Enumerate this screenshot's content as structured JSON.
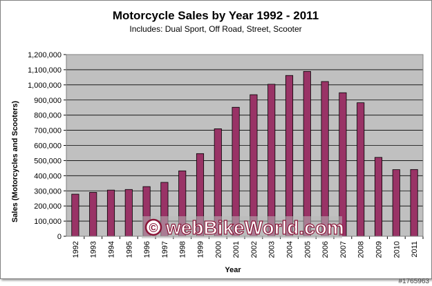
{
  "chart_data": {
    "type": "bar",
    "title": "Motorcycle Sales by Year 1992 - 2011",
    "subtitle": "Includes: Dual Sport, Off Road, Street, Scooter",
    "xlabel": "Year",
    "ylabel": "Sales (Motorcycles and Scooters)",
    "categories": [
      "1992",
      "1993",
      "1994",
      "1995",
      "1996",
      "1997",
      "1998",
      "1999",
      "2000",
      "2001",
      "2002",
      "2003",
      "2004",
      "2005",
      "2006",
      "2007",
      "2008",
      "2009",
      "2010",
      "2011"
    ],
    "values": [
      278000,
      290000,
      305000,
      309000,
      328000,
      356000,
      432000,
      546000,
      710000,
      852000,
      935000,
      1004000,
      1062000,
      1089000,
      1022000,
      948000,
      882000,
      521000,
      440000,
      441000
    ],
    "ylim": [
      0,
      1200000
    ],
    "ytick_step": 100000,
    "grid": true,
    "legend": "none",
    "colors": {
      "bar": "#993366",
      "plot_bg": "#c0c0c0",
      "grid": "#000000"
    }
  },
  "watermark": {
    "symbol": "©",
    "text": "webBikeWorld.com"
  },
  "image_id": "#1765963"
}
